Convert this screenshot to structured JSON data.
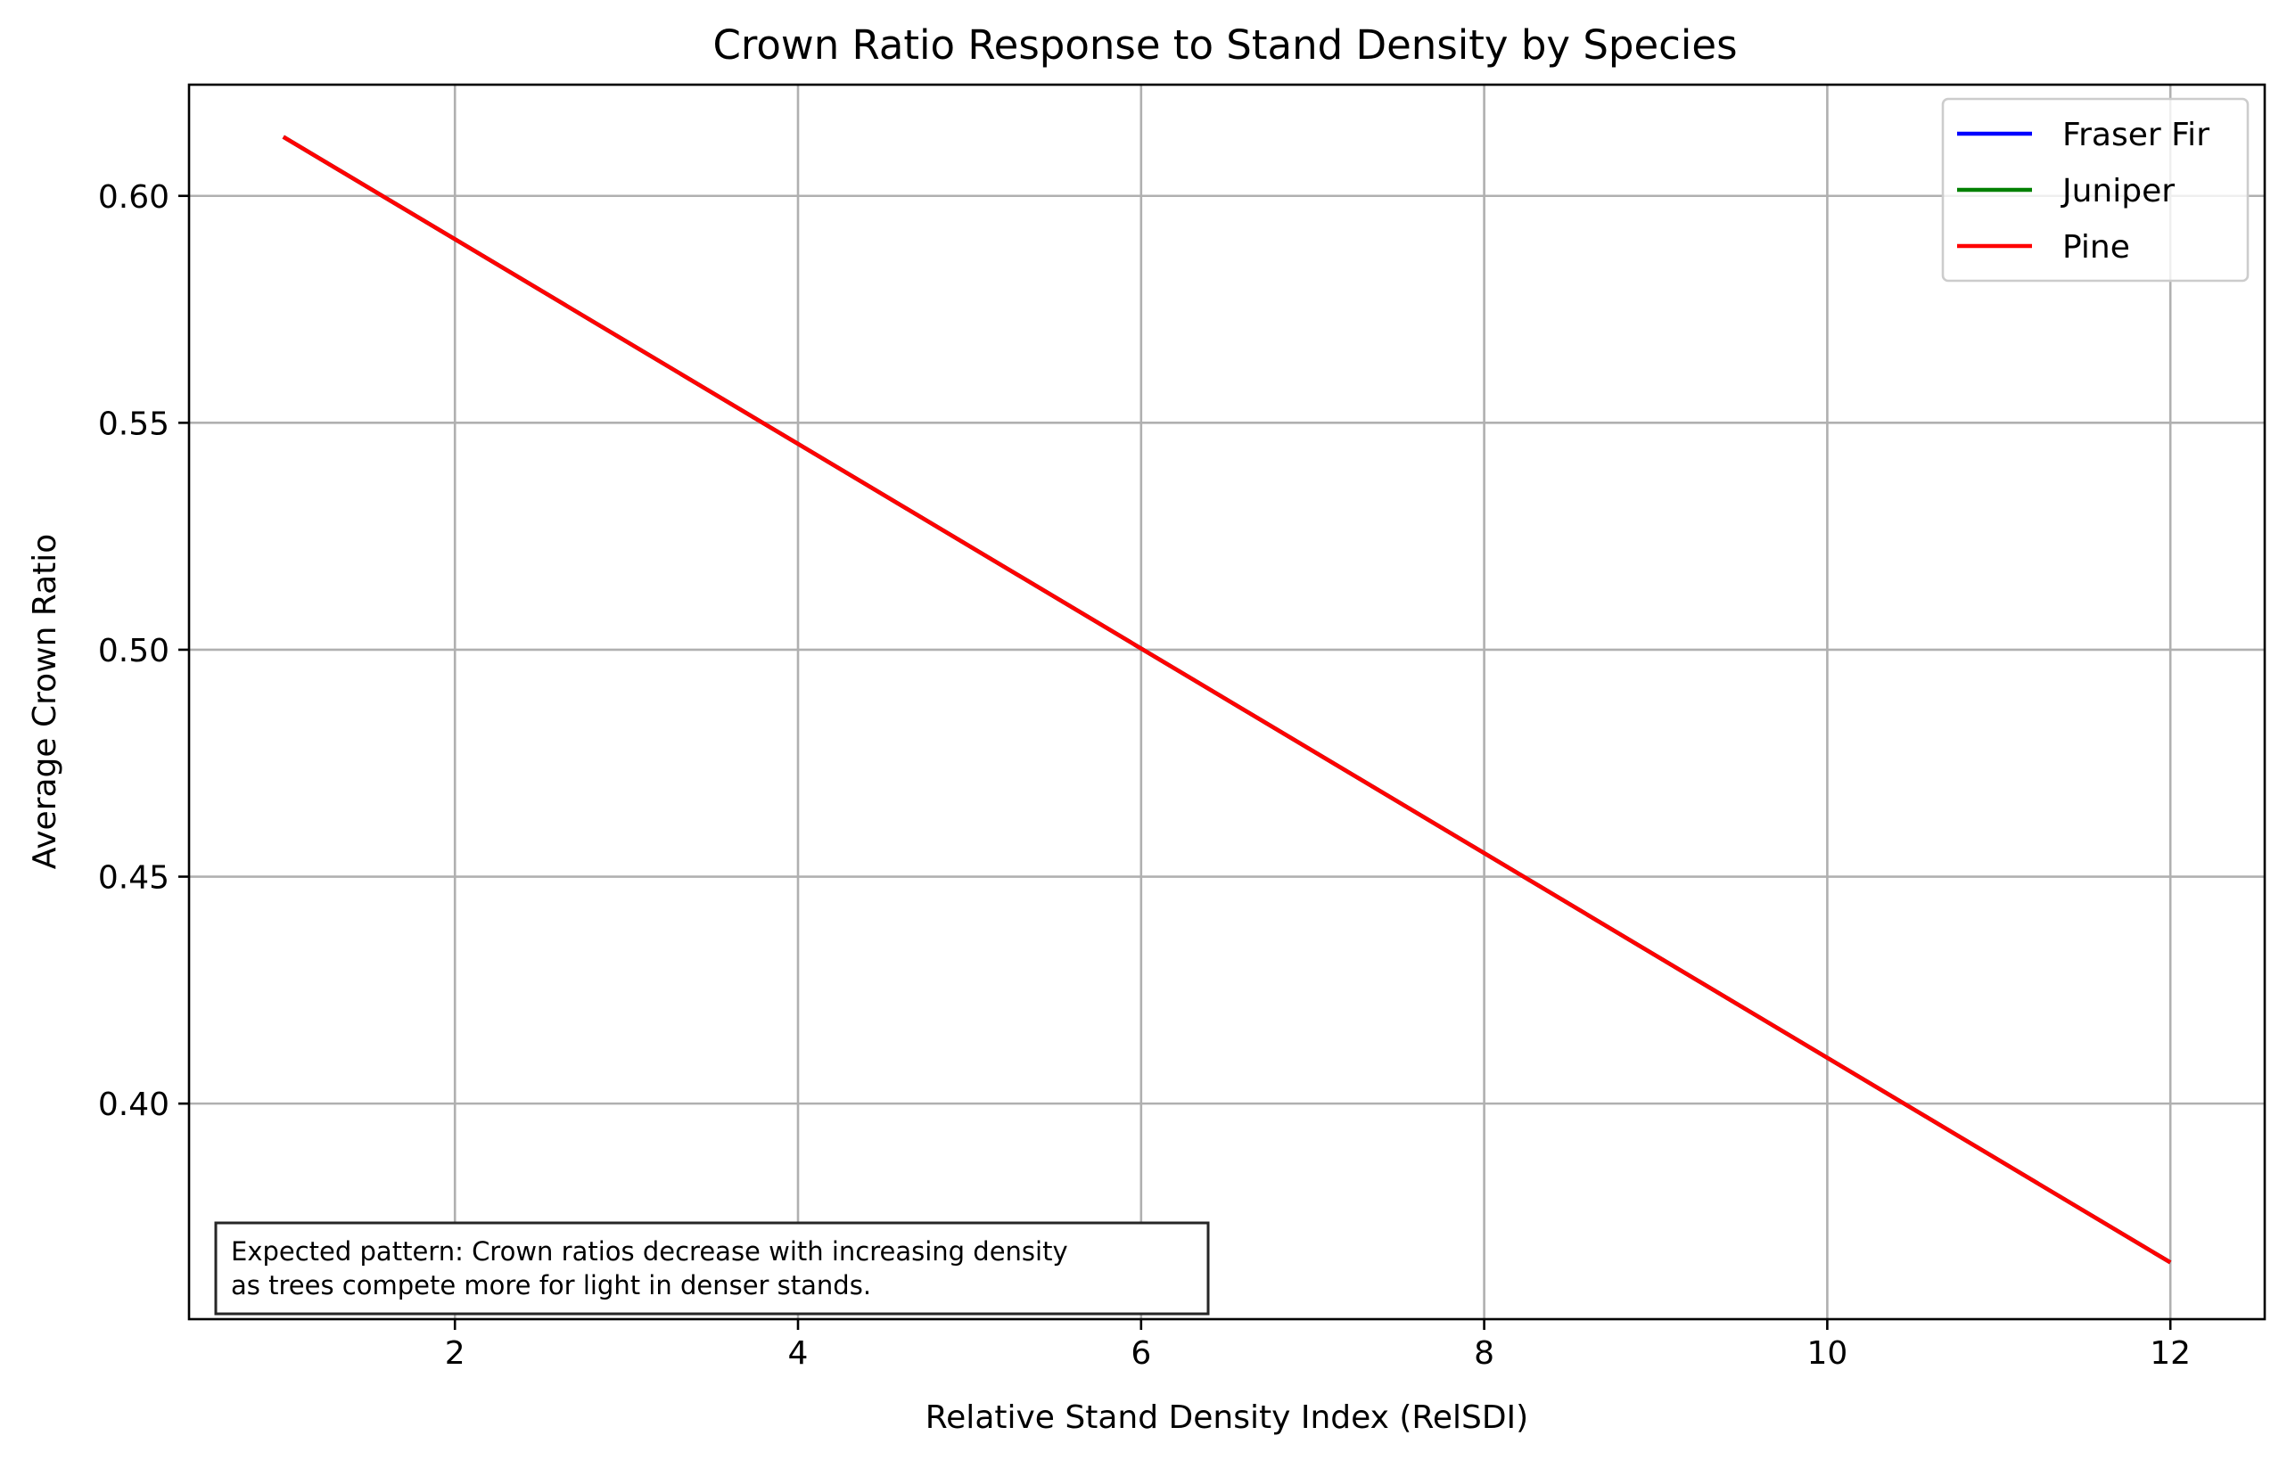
{
  "chart_data": {
    "type": "line",
    "title": "Crown Ratio Response to Stand Density by Species",
    "xlabel": "Relative Stand Density Index (RelSDI)",
    "ylabel": "Average Crown Ratio",
    "xlim": [
      0.45,
      12.55
    ],
    "ylim": [
      0.3525,
      0.6245
    ],
    "xticks": [
      2,
      4,
      6,
      8,
      10,
      12
    ],
    "xtick_labels": [
      "2",
      "4",
      "6",
      "8",
      "10",
      "12"
    ],
    "yticks": [
      0.4,
      0.45,
      0.5,
      0.55,
      0.6
    ],
    "ytick_labels": [
      "0.40",
      "0.45",
      "0.50",
      "0.55",
      "0.60"
    ],
    "grid": true,
    "legend_position": "top-right",
    "series": [
      {
        "name": "Fraser Fir",
        "color": "#0000ff",
        "x": [
          1,
          12
        ],
        "y": [
          0.613,
          0.365
        ]
      },
      {
        "name": "Juniper",
        "color": "#008000",
        "x": [
          1,
          12
        ],
        "y": [
          0.613,
          0.365
        ]
      },
      {
        "name": "Pine",
        "color": "#ff0000",
        "x": [
          1,
          12
        ],
        "y": [
          0.613,
          0.365
        ]
      }
    ],
    "annotation": {
      "lines": [
        "Expected pattern: Crown ratios decrease with increasing density",
        "as trees compete more for light in denser stands."
      ],
      "position": "bottom-left"
    }
  }
}
